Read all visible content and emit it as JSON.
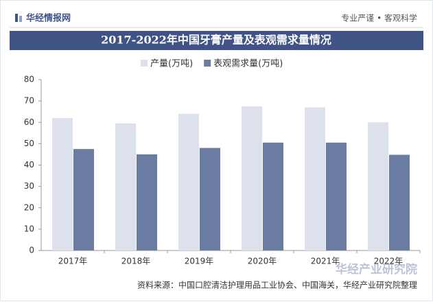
{
  "header": {
    "logo": "华经情报网",
    "slogan": "专业严谨 • 客观科学"
  },
  "chart_data": {
    "type": "bar",
    "title": "2017-2022年中国牙膏产量及表观需求量情况",
    "categories": [
      "2017年",
      "2018年",
      "2019年",
      "2020年",
      "2021年",
      "2022年"
    ],
    "series": [
      {
        "name": "产量(万吨)",
        "color": "#dde1ec",
        "values": [
          62,
          59.5,
          64,
          67.5,
          67,
          60
        ]
      },
      {
        "name": "表观需求量(万吨)",
        "color": "#6b7ca3",
        "values": [
          47.5,
          45,
          48,
          50.5,
          50.5,
          44.8
        ]
      }
    ],
    "ylim": [
      0,
      80
    ],
    "yticks": [
      0,
      10,
      20,
      30,
      40,
      50,
      60,
      70,
      80
    ],
    "grid": false
  },
  "footer": {
    "source": "资料来源：中国口腔清洁护理用品工业协会、中国海关，华经产业研究院整理",
    "watermark": "华经产业研究院"
  }
}
